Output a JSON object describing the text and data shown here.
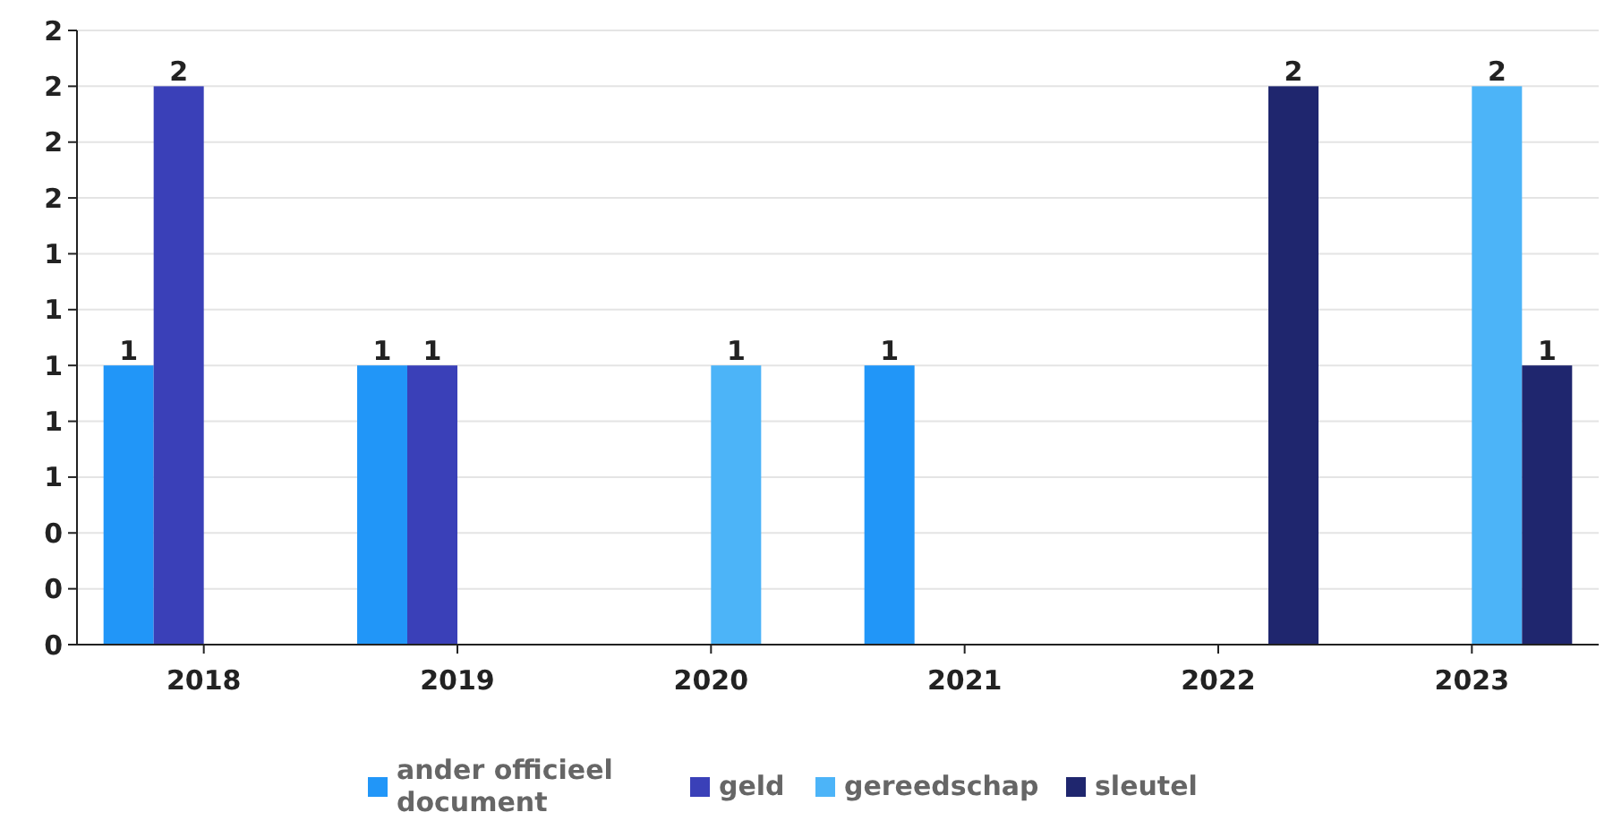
{
  "chart_data": {
    "type": "bar",
    "categories": [
      "2018",
      "2019",
      "2020",
      "2021",
      "2022",
      "2023"
    ],
    "series": [
      {
        "name": "ander officieel document",
        "color": "#2196f8",
        "values": [
          1,
          1,
          null,
          1,
          null,
          null
        ]
      },
      {
        "name": "geld",
        "color": "#3a40b8",
        "values": [
          2,
          1,
          null,
          null,
          null,
          null
        ]
      },
      {
        "name": "gereedschap",
        "color": "#4cb4f8",
        "values": [
          null,
          null,
          1,
          null,
          null,
          2
        ]
      },
      {
        "name": "sleutel",
        "color": "#1f266e",
        "values": [
          null,
          null,
          null,
          null,
          2,
          1
        ]
      }
    ],
    "ylim": [
      0,
      2.2
    ],
    "yticks": [
      {
        "value": 0,
        "label": "0"
      },
      {
        "value": 0.2,
        "label": "0"
      },
      {
        "value": 0.4,
        "label": "0"
      },
      {
        "value": 0.6,
        "label": "1"
      },
      {
        "value": 0.8,
        "label": "1"
      },
      {
        "value": 1,
        "label": "1"
      },
      {
        "value": 1.2,
        "label": "1"
      },
      {
        "value": 1.4,
        "label": "1"
      },
      {
        "value": 1.6,
        "label": "2"
      },
      {
        "value": 1.8,
        "label": "2"
      },
      {
        "value": 2,
        "label": "2"
      },
      {
        "value": 2.2,
        "label": "2"
      }
    ],
    "grid": "y",
    "data_labels": true,
    "legend": "bottom"
  }
}
